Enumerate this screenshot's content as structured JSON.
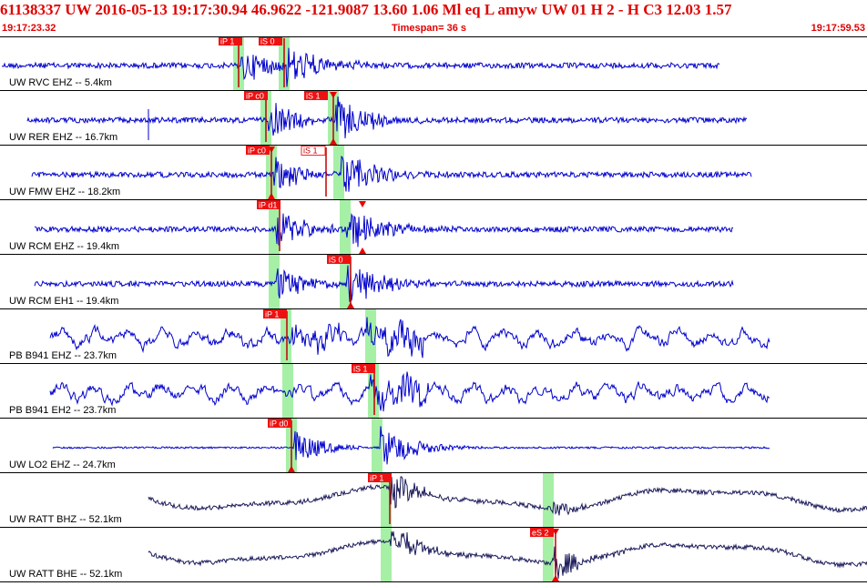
{
  "header": {
    "line": "61138337 UW 2016-05-13 19:17:30.94   46.9622 -121.9087  13.60  1.06 Ml  eq  L amyw     UW 01  H   2  -  H C3   12.03  1.57"
  },
  "timebar": {
    "start": "19:17:23.32",
    "span": "Timespan=  36 s",
    "end": "19:17:59.53"
  },
  "colors": {
    "header": "#e00000",
    "trace": "#0000cc",
    "trace_dark": "#1a1a5a",
    "pick_fill": "#ee1111",
    "pick_box": "#ff2222",
    "window": "#a6f0a6"
  },
  "traces": [
    {
      "label": "UW RVC EHZ -- 5.4km",
      "style": "normal",
      "amp": 3,
      "picks": [
        {
          "text": "iP 1",
          "filled": true
        },
        {
          "text": "iS 0",
          "filled": true
        }
      ]
    },
    {
      "label": "UW RER EHZ -- 16.7km",
      "style": "normal",
      "amp": 3,
      "picks": [
        {
          "text": "iP c0",
          "filled": true
        },
        {
          "text": "iS 1",
          "filled": true
        }
      ]
    },
    {
      "label": "UW FMW EHZ -- 18.2km",
      "style": "normal",
      "amp": 3,
      "picks": [
        {
          "text": "iP c0",
          "filled": true
        },
        {
          "text": "iS 1",
          "filled": false
        }
      ]
    },
    {
      "label": "UW RCM EHZ -- 19.4km",
      "style": "normal",
      "amp": 3,
      "picks": [
        {
          "text": "iP d1",
          "filled": true
        }
      ]
    },
    {
      "label": "UW RCM EH1 -- 19.4km",
      "style": "normal",
      "amp": 3,
      "picks": [
        {
          "text": "iS 0",
          "filled": true
        }
      ]
    },
    {
      "label": "PB B941 EHZ -- 23.7km",
      "style": "noisy",
      "amp": 12,
      "picks": [
        {
          "text": "iP 1",
          "filled": true
        }
      ]
    },
    {
      "label": "PB B941 EH2 -- 23.7km",
      "style": "noisy",
      "amp": 12,
      "picks": [
        {
          "text": "iS 1",
          "filled": true
        }
      ]
    },
    {
      "label": "UW LO2 EHZ -- 24.7km",
      "style": "normal",
      "amp": 1,
      "picks": [
        {
          "text": "iP d0",
          "filled": true
        }
      ]
    },
    {
      "label": "UW RATT BHZ -- 52.1km",
      "style": "long",
      "amp": 8,
      "picks": [
        {
          "text": "iP 1",
          "filled": true
        }
      ]
    },
    {
      "label": "UW RATT BHE -- 52.1km",
      "style": "long",
      "amp": 8,
      "picks": [
        {
          "text": "eS 2",
          "filled": true
        }
      ]
    }
  ]
}
